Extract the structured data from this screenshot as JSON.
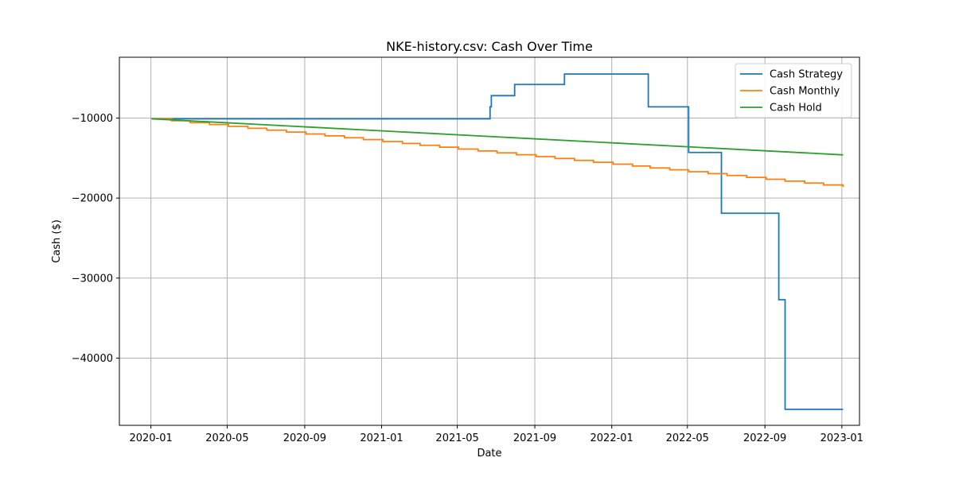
{
  "chart_data": {
    "type": "line",
    "title": "NKE-history.csv: Cash Over Time",
    "xlabel": "Date",
    "ylabel": "Cash ($)",
    "xlim": [
      "2019-11-12",
      "2023-01-29"
    ],
    "ylim": [
      -48400,
      -2400
    ],
    "x_ticks": [
      "2020-01",
      "2020-05",
      "2020-09",
      "2021-01",
      "2021-05",
      "2021-09",
      "2022-01",
      "2022-05",
      "2022-09",
      "2023-01"
    ],
    "y_ticks": [
      -10000,
      -20000,
      -30000,
      -40000
    ],
    "grid": true,
    "legend_position": "upper right",
    "series": [
      {
        "name": "Cash Strategy",
        "color": "#1f77b4",
        "step": true,
        "points": [
          [
            "2020-01-02",
            -10100
          ],
          [
            "2021-06-22",
            -8600
          ],
          [
            "2021-06-24",
            -7200
          ],
          [
            "2021-07-31",
            -5800
          ],
          [
            "2021-10-18",
            -4500
          ],
          [
            "2022-02-28",
            -8600
          ],
          [
            "2022-05-03",
            -14300
          ],
          [
            "2022-06-24",
            -21900
          ],
          [
            "2022-09-23",
            -32700
          ],
          [
            "2022-10-03",
            -46400
          ],
          [
            "2023-01-03",
            -46400
          ]
        ]
      },
      {
        "name": "Cash Monthly",
        "color": "#ff7f0e",
        "step": true,
        "start": [
          "2020-01-02",
          -10100
        ],
        "monthly_step": -236,
        "end": [
          "2023-01-03",
          -18300
        ]
      },
      {
        "name": "Cash Hold",
        "color": "#2ca02c",
        "step": false,
        "points": [
          [
            "2020-01-02",
            -10100
          ],
          [
            "2023-01-03",
            -14600
          ]
        ]
      }
    ]
  }
}
